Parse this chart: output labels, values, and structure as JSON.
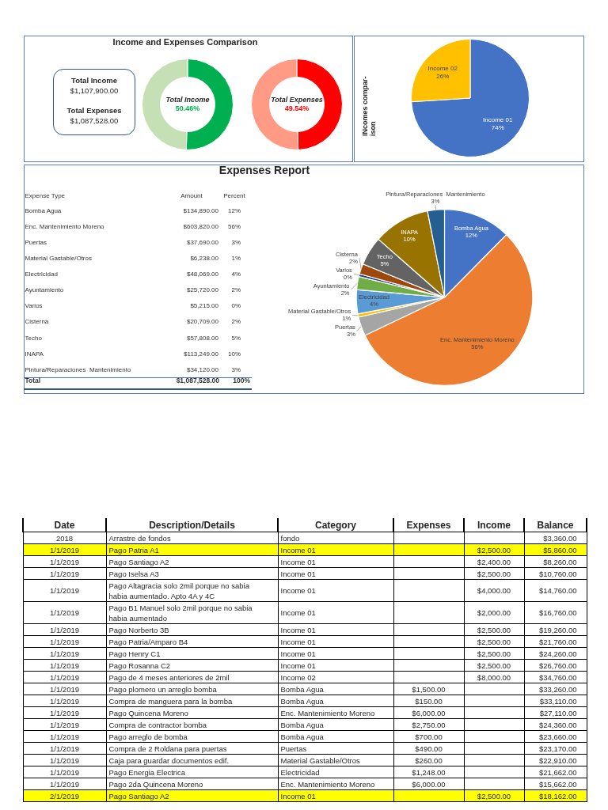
{
  "chart_data": [
    {
      "type": "other",
      "title": "Income and Expenses Comparison",
      "annotations": [
        "Total Income",
        "$1,107,900.00",
        "Total Expenses",
        "$1,087,528.00"
      ]
    },
    {
      "type": "donut",
      "categories": [
        null,
        null
      ],
      "values": [
        50.46,
        49.54
      ],
      "colors": [
        "#00b050",
        "#c5e0b4"
      ],
      "value_labels": [
        "50.46%",
        null
      ],
      "annotations": [
        "Total Income"
      ]
    },
    {
      "type": "donut",
      "categories": [
        null,
        null
      ],
      "values": [
        49.54,
        50.46
      ],
      "colors": [
        "#ff0000",
        "#ff9b85"
      ],
      "value_labels": [
        "49.54%",
        null
      ],
      "annotations": [
        "Total Expenses"
      ]
    },
    {
      "type": "pie",
      "title": "INcomes compar-ison",
      "categories": [
        "Income 01",
        "Income 02"
      ],
      "values": [
        74,
        26
      ],
      "colors": [
        "#4472c4",
        "#ffc000"
      ],
      "value_labels": [
        "74%",
        "26%"
      ]
    },
    {
      "type": "other",
      "title": "Expenses Report",
      "annotations": [
        "Expense Type",
        "Amount",
        "Percent",
        "Bomba Agua",
        "$134,890.00",
        "12%",
        "Enc. Mantenimiento Moreno",
        "$603,820.00",
        "56%",
        "Puertas",
        "$37,690.00",
        "3%",
        "Material Gastable/Otros",
        "$6,238.00",
        "1%",
        "Electricidad",
        "$48,069.00",
        "4%",
        "Ayuntamiento",
        "$25,720.00",
        "2%",
        "Varios",
        "$5,215.00",
        "0%",
        "Cisterna",
        "$20,709.00",
        "2%",
        "Techo",
        "$57,808.00",
        "5%",
        "INAPA",
        "$113,249.00",
        "10%",
        "Pintura/Reparaciones  Mantenimiento",
        "$34,120.00",
        "3%",
        "Total",
        "$1,087,528.00",
        "100%"
      ]
    },
    {
      "type": "pie",
      "categories": [
        "Bomba Agua",
        "Enc. Mantenimiento Moreno",
        "Puertas",
        "Material Gastable/Otros",
        "Electricidad",
        "Ayuntamiento",
        "Varios",
        "Cisterna",
        "Techo",
        "INAPA",
        "Pintura/Reparaciones  Mantenimiento"
      ],
      "values": [
        12.4,
        55.5,
        3.5,
        0.6,
        4.4,
        2.4,
        0.5,
        1.9,
        5.3,
        10.4,
        3.1
      ],
      "colors": [
        "#4472c4",
        "#ed7d31",
        "#a5a5a5",
        "#ffc000",
        "#5b9bd5",
        "#70ad47",
        "#264478",
        "#9e480e",
        "#636363",
        "#997300",
        "#255e91"
      ],
      "value_labels": [
        "12%",
        "56%",
        "3%",
        "1%",
        "4%",
        "2%",
        "0%",
        "2%",
        "5%",
        "10%",
        "3%"
      ]
    },
    {
      "type": "other",
      "annotations": [
        "Date",
        "Description/Details",
        "Category",
        "Expenses",
        "Income",
        "Balance",
        "2018",
        "Arrastre de fondos",
        "fondo",
        null,
        null,
        "$3,360.00",
        "1/1/2019",
        "Pago Patria A1",
        "Income 01",
        null,
        "$2,500.00",
        "$5,860.00",
        "1/1/2019",
        "Pago Santiago A2",
        "Income 01",
        null,
        "$2,400.00",
        "$8,260.00",
        "1/1/2019",
        "Pago Iselsa A3",
        "Income 01",
        null,
        "$2,500.00",
        "$10,760.00",
        "1/1/2019",
        "Pago Altagracia solo 2mil porque no sabia habia aumentado. Apto 4A y 4C",
        "Income 01",
        null,
        "$4,000.00",
        "$14,760.00",
        "1/1/2019",
        "Pago B1 Manuel solo 2mil porque no sabia habia aumentado",
        "Income 01",
        null,
        "$2,000.00",
        "$16,760.00",
        "1/1/2019",
        "Pago Norberto 3B",
        "Income 01",
        null,
        "$2,500.00",
        "$19,260.00",
        "1/1/2019",
        "Pago Patria/Amparo B4",
        "Income 01",
        null,
        "$2,500.00",
        "$21,760.00",
        "1/1/2019",
        "Pago Henry C1",
        "Income 01",
        null,
        "$2,500.00",
        "$24,260.00",
        "1/1/2019",
        "Pago Rosanna C2",
        "Income 01",
        null,
        "$2,500.00",
        "$26,760.00",
        "1/1/2019",
        "Pago de 4 meses anteriores de 2mil",
        "Income 02",
        null,
        "$8,000.00",
        "$34,760.00",
        "1/1/2019",
        "Pago plomero un arreglo bomba",
        "Bomba Agua",
        "$1,500.00",
        null,
        "$33,260.00",
        "1/1/2019",
        "Compra de manguera para la bomba",
        "Bomba Agua",
        "$150.00",
        null,
        "$33,110.00",
        "1/1/2019",
        "Pago Quincena Moreno",
        "Enc. Mantenimiento Moreno",
        "$6,000.00",
        null,
        "$27,110.00",
        "1/1/2019",
        "Compra de contractor bomba",
        "Bomba Agua",
        "$2,750.00",
        null,
        "$24,360.00",
        "1/1/2019",
        "Pago arreglo de bomba",
        "Bomba Agua",
        "$700.00",
        null,
        "$23,660.00",
        "1/1/2019",
        "Compra de 2 Roldana para puertas",
        "Puertas",
        "$490.00",
        null,
        "$23,170.00",
        "1/1/2019",
        "Caja para guardar documentos edif.",
        "Material Gastable/Otros",
        "$260.00",
        null,
        "$22,910.00",
        "1/1/2019",
        "Pago Energia Electrica",
        "Electricidad",
        "$1,248.00",
        null,
        "$21,662.00",
        "1/1/2019",
        "Pago 2da Quincena Moreno",
        "Enc. Mantenimiento Moreno",
        "$6,000.00",
        null,
        "$15,662.00",
        "2/1/2019",
        "Pago Santiago A2",
        "Income 01",
        null,
        "$2,500.00",
        "$18,162.00"
      ],
      "colors": [
        null,
        "#ffff00",
        null,
        null,
        null,
        null,
        null,
        null,
        null,
        null,
        null,
        null,
        null,
        null,
        null,
        null,
        null,
        null,
        null,
        null,
        "#ffff00"
      ]
    }
  ]
}
